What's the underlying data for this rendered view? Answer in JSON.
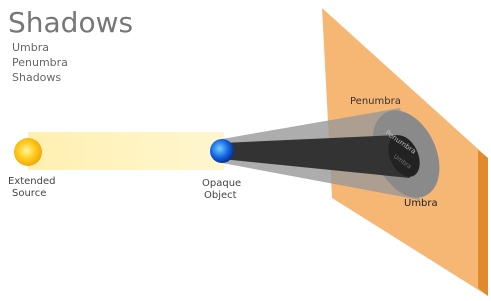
{
  "title": "Shadows",
  "topics": [
    "Umbra",
    "Penumbra",
    "Shadows"
  ],
  "source_label": [
    "Extended",
    "Source"
  ],
  "object_label": [
    "Opaque",
    "Object"
  ],
  "screen_labels": {
    "penumbra": "Penumbra",
    "umbra": "Umbra"
  },
  "shadow_labels": {
    "penumbra": "Penumbra",
    "umbra": "Umbra"
  }
}
